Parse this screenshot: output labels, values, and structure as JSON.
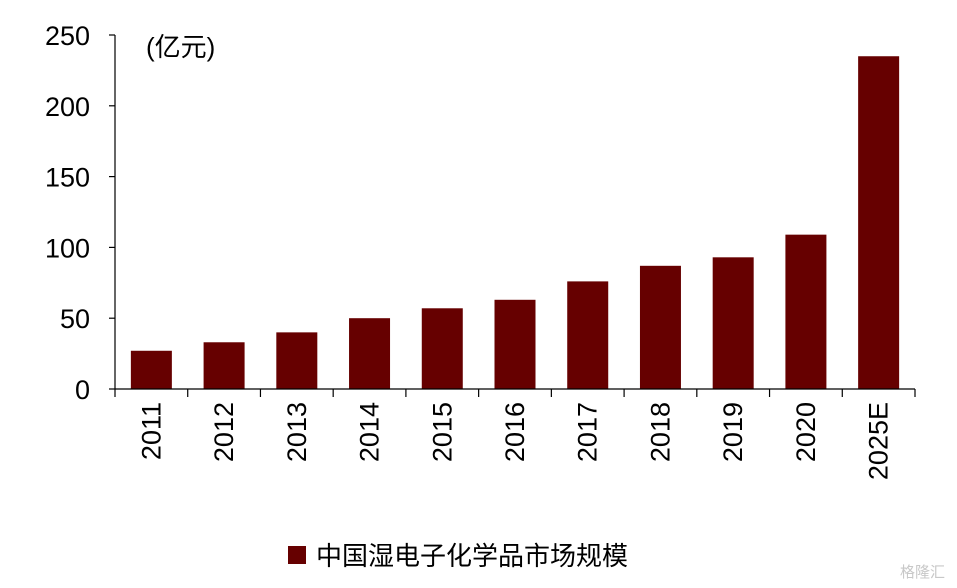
{
  "chart_data": {
    "type": "bar",
    "categories": [
      "2011",
      "2012",
      "2013",
      "2014",
      "2015",
      "2016",
      "2017",
      "2018",
      "2019",
      "2020",
      "2025E"
    ],
    "series": [
      {
        "name": "中国湿电子化学品市场规模",
        "values": [
          27,
          33,
          40,
          50,
          57,
          63,
          76,
          87,
          93,
          109,
          235
        ]
      }
    ],
    "unit_label": "(亿元)",
    "ylim": [
      0,
      250
    ],
    "yticks": [
      0,
      50,
      100,
      150,
      200,
      250
    ],
    "grid": false,
    "legend_position": "bottom",
    "bar_color": "#660000"
  },
  "watermark": "格隆汇"
}
